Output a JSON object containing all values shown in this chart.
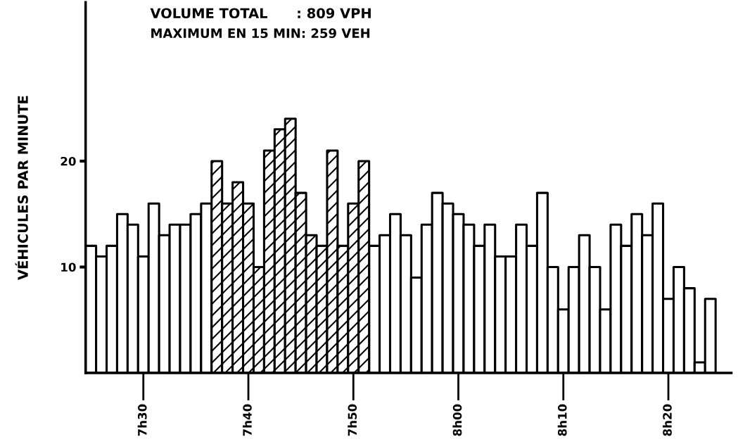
{
  "chart_data": {
    "type": "bar",
    "title": "VOLUME TOTAL      : 809 VPH",
    "subtitle": "MAXIMUM EN 15 MIN: 259 VEH",
    "ylabel": "VÉHICULES PAR MINUTE",
    "categories": [
      null,
      null,
      null,
      null,
      null,
      "7h30",
      null,
      null,
      null,
      null,
      null,
      null,
      null,
      null,
      null,
      "7h40",
      null,
      null,
      null,
      null,
      null,
      null,
      null,
      null,
      null,
      "7h50",
      null,
      null,
      null,
      null,
      null,
      null,
      null,
      null,
      null,
      "8h00",
      null,
      null,
      null,
      null,
      null,
      null,
      null,
      null,
      null,
      "8h10",
      null,
      null,
      null,
      null,
      null,
      null,
      null,
      null,
      null,
      "8h20",
      null,
      null,
      null,
      null
    ],
    "series": [
      {
        "color": "#ffffff",
        "values": [
          12,
          11,
          12,
          15,
          14,
          11,
          16,
          13,
          14,
          14,
          15,
          16,
          null,
          null,
          null,
          null,
          null,
          null,
          null,
          null,
          null,
          null,
          null,
          null,
          null,
          null,
          null,
          12,
          13,
          15,
          13,
          9,
          14,
          17,
          16,
          15,
          14,
          12,
          14,
          11,
          11,
          14,
          12,
          17,
          10,
          6,
          10,
          13,
          10,
          6,
          14,
          12,
          15,
          13,
          16,
          7,
          10,
          8,
          1,
          7
        ]
      },
      {
        "color": "#000000",
        "values": [
          null,
          null,
          null,
          null,
          null,
          null,
          null,
          null,
          null,
          null,
          null,
          null,
          20,
          16,
          18,
          16,
          10,
          21,
          23,
          24,
          17,
          13,
          12,
          21,
          12,
          16,
          20,
          null,
          null,
          null,
          null,
          null,
          null,
          null,
          null,
          null,
          null,
          null,
          null,
          null,
          null,
          null,
          null,
          null,
          null,
          null,
          null,
          null,
          null,
          null,
          null,
          null,
          null,
          null,
          null,
          null,
          null,
          null,
          null,
          null
        ]
      }
    ],
    "ylim": [
      0,
      35
    ],
    "yticks": [
      10,
      20
    ],
    "grid": false,
    "legend": false
  }
}
